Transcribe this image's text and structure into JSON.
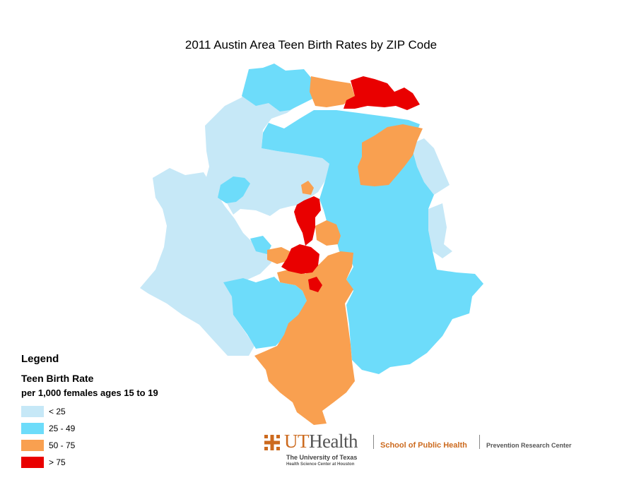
{
  "title": "2011 Austin Area Teen Birth Rates by ZIP Code",
  "legend": {
    "heading": "Legend",
    "subtitle": "Teen Birth Rate",
    "subtitle2": "per 1,000 females ages 15 to 19",
    "items": [
      {
        "label": "< 25",
        "color": "#c6e8f7"
      },
      {
        "label": "25 - 49",
        "color": "#6ddcfa"
      },
      {
        "label": "50 - 75",
        "color": "#f9a050"
      },
      {
        "label": "> 75",
        "color": "#e90000"
      }
    ]
  },
  "branding": {
    "ut": "UT",
    "health": "Health",
    "school": "School of Public Health",
    "center": "Prevention Research Center",
    "university": "The University of Texas",
    "campus": "Health Science Center at Houston"
  }
}
